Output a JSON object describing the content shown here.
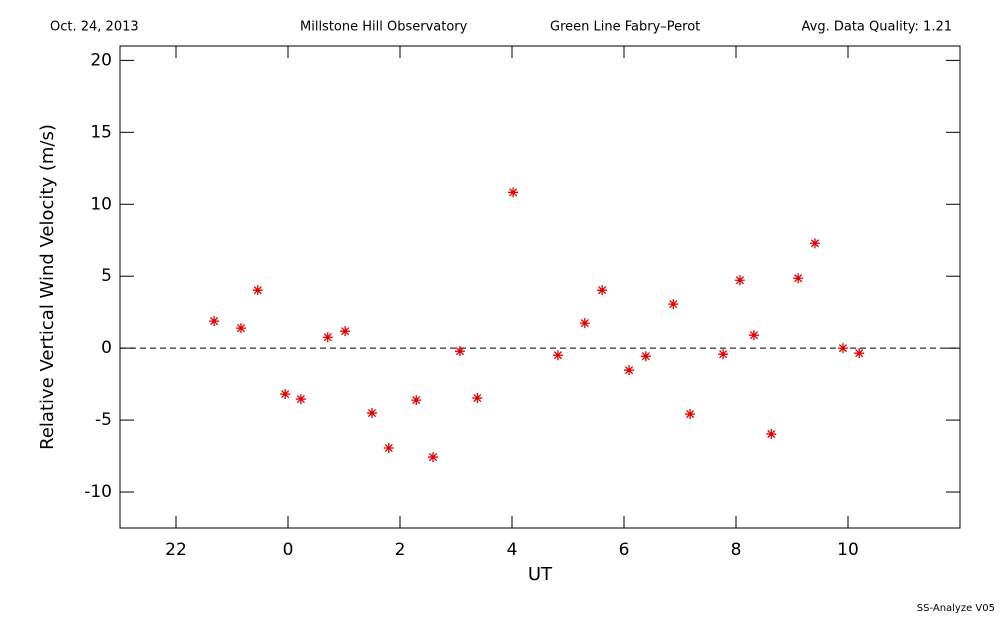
{
  "chart_data": {
    "type": "scatter",
    "header": [
      "Oct. 24, 2013",
      "Millstone Hill Observatory",
      "Green Line Fabry–Perot",
      "Avg. Data Quality: 1.21"
    ],
    "footer": "SS-Analyze V05",
    "xlabel": "UT",
    "ylabel": "Relative Vertical Wind Velocity (m/s)",
    "xlim": [
      -3,
      12
    ],
    "ylim": [
      -12.5,
      21
    ],
    "xticks": [
      {
        "value": -2,
        "label": "22"
      },
      0,
      2,
      4,
      6,
      8,
      10
    ],
    "yticks": [
      -10,
      -5,
      0,
      5,
      10,
      15,
      20
    ],
    "hline": 0,
    "color": "#e00000",
    "x": [
      -1.32,
      -0.84,
      -0.54,
      -0.05,
      0.23,
      0.71,
      1.02,
      1.5,
      1.8,
      2.29,
      2.59,
      3.07,
      3.38,
      4.02,
      4.82,
      5.3,
      5.61,
      6.09,
      6.39,
      6.88,
      7.18,
      7.77,
      8.07,
      8.32,
      8.63,
      9.11,
      9.41,
      9.91,
      10.2
    ],
    "values": [
      1.88,
      1.39,
      4.03,
      -3.19,
      -3.54,
      0.76,
      1.18,
      -4.51,
      -6.94,
      -3.61,
      -7.57,
      -0.21,
      -3.47,
      10.83,
      -0.49,
      1.74,
      4.03,
      -1.53,
      -0.56,
      3.06,
      -4.58,
      -0.42,
      4.72,
      0.9,
      -5.97,
      4.86,
      7.29,
      0.0,
      -0.35
    ]
  }
}
